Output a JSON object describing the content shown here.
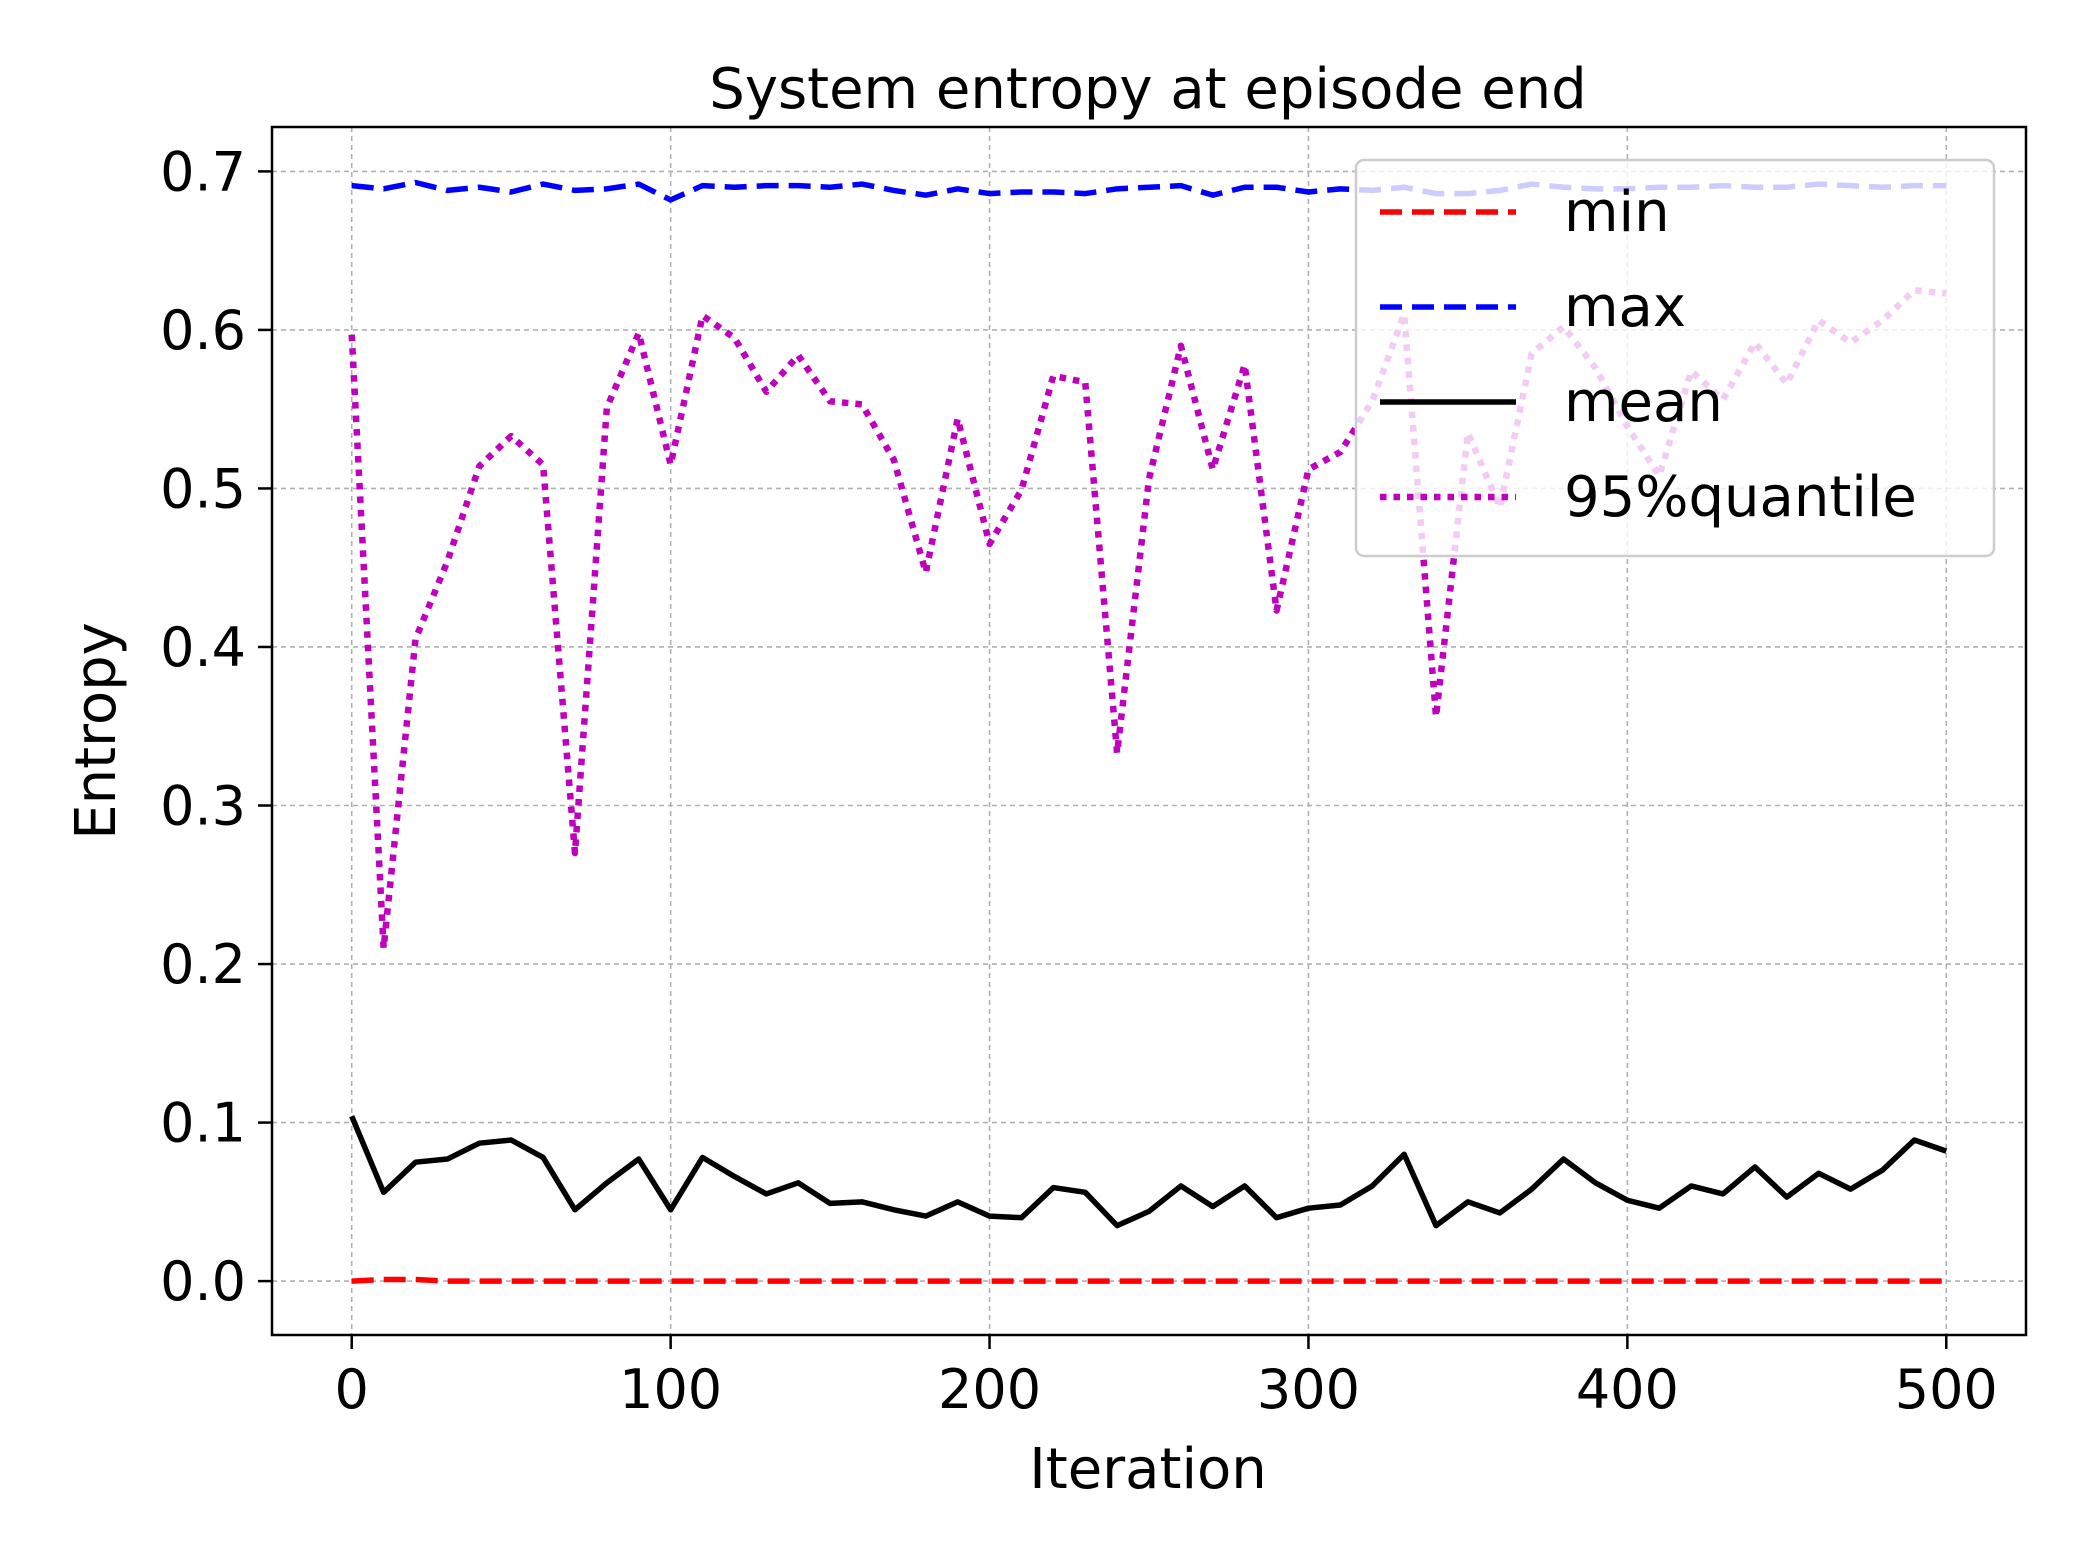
{
  "chart_data": {
    "type": "line",
    "title": "System entropy at episode end",
    "xlabel": "Iteration",
    "ylabel": "Entropy",
    "xlim": [
      -25,
      525
    ],
    "ylim": [
      -0.034,
      0.728
    ],
    "x_ticks": [
      0,
      100,
      200,
      300,
      400,
      500
    ],
    "y_ticks": [
      0.0,
      0.1,
      0.2,
      0.3,
      0.4,
      0.5,
      0.6,
      0.7
    ],
    "x_tick_labels": [
      "0",
      "100",
      "200",
      "300",
      "400",
      "500"
    ],
    "y_tick_labels": [
      "0.0",
      "0.1",
      "0.2",
      "0.3",
      "0.4",
      "0.5",
      "0.6",
      "0.7"
    ],
    "grid": true,
    "legend_position": "top-right",
    "x": [
      0,
      10,
      20,
      30,
      40,
      50,
      60,
      70,
      80,
      90,
      100,
      110,
      120,
      130,
      140,
      150,
      160,
      170,
      180,
      190,
      200,
      210,
      220,
      230,
      240,
      250,
      260,
      270,
      280,
      290,
      300,
      310,
      320,
      330,
      340,
      350,
      360,
      370,
      380,
      390,
      400,
      410,
      420,
      430,
      440,
      450,
      460,
      470,
      480,
      490,
      500
    ],
    "series": [
      {
        "name": "min",
        "color": "#ff0000",
        "style": "dashed",
        "values": [
          0.0,
          0.001,
          0.001,
          0.0,
          0.0,
          0.0,
          0.0,
          0.0,
          0.0,
          0.0,
          0.0,
          0.0,
          0.0,
          0.0,
          0.0,
          0.0,
          0.0,
          0.0,
          0.0,
          0.0,
          0.0,
          0.0,
          0.0,
          0.0,
          0.0,
          0.0,
          0.0,
          0.0,
          0.0,
          0.0,
          0.0,
          0.0,
          0.0,
          0.0,
          0.0,
          0.0,
          0.0,
          0.0,
          0.0,
          0.0,
          0.0,
          0.0,
          0.0,
          0.0,
          0.0,
          0.0,
          0.0,
          0.0,
          0.0,
          0.0,
          0.0
        ]
      },
      {
        "name": "max",
        "color": "#0000ff",
        "style": "dashed",
        "values": [
          0.691,
          0.689,
          0.693,
          0.688,
          0.69,
          0.687,
          0.692,
          0.688,
          0.689,
          0.692,
          0.682,
          0.691,
          0.69,
          0.691,
          0.691,
          0.69,
          0.692,
          0.688,
          0.685,
          0.689,
          0.686,
          0.687,
          0.687,
          0.686,
          0.689,
          0.69,
          0.691,
          0.685,
          0.69,
          0.69,
          0.687,
          0.689,
          0.688,
          0.69,
          0.686,
          0.686,
          0.688,
          0.692,
          0.69,
          0.689,
          0.689,
          0.69,
          0.69,
          0.691,
          0.69,
          0.69,
          0.692,
          0.691,
          0.69,
          0.691,
          0.691
        ]
      },
      {
        "name": "mean",
        "color": "#000000",
        "style": "solid",
        "values": [
          0.104,
          0.056,
          0.075,
          0.077,
          0.087,
          0.089,
          0.078,
          0.045,
          0.062,
          0.077,
          0.045,
          0.078,
          0.066,
          0.055,
          0.062,
          0.049,
          0.05,
          0.045,
          0.041,
          0.05,
          0.041,
          0.04,
          0.059,
          0.056,
          0.035,
          0.044,
          0.06,
          0.047,
          0.06,
          0.04,
          0.046,
          0.048,
          0.06,
          0.08,
          0.035,
          0.05,
          0.043,
          0.058,
          0.077,
          0.062,
          0.051,
          0.046,
          0.06,
          0.055,
          0.072,
          0.053,
          0.068,
          0.058,
          0.07,
          0.089,
          0.082
        ]
      },
      {
        "name": "95%quantile",
        "color": "#bf00bf",
        "style": "dotted",
        "values": [
          0.597,
          0.21,
          0.405,
          0.454,
          0.514,
          0.533,
          0.515,
          0.27,
          0.551,
          0.598,
          0.515,
          0.609,
          0.595,
          0.561,
          0.584,
          0.555,
          0.553,
          0.518,
          0.447,
          0.544,
          0.465,
          0.499,
          0.571,
          0.567,
          0.333,
          0.506,
          0.59,
          0.512,
          0.578,
          0.423,
          0.512,
          0.523,
          0.555,
          0.61,
          0.356,
          0.535,
          0.488,
          0.585,
          0.602,
          0.576,
          0.539,
          0.508,
          0.574,
          0.556,
          0.592,
          0.566,
          0.606,
          0.592,
          0.606,
          0.625,
          0.623
        ]
      }
    ]
  }
}
